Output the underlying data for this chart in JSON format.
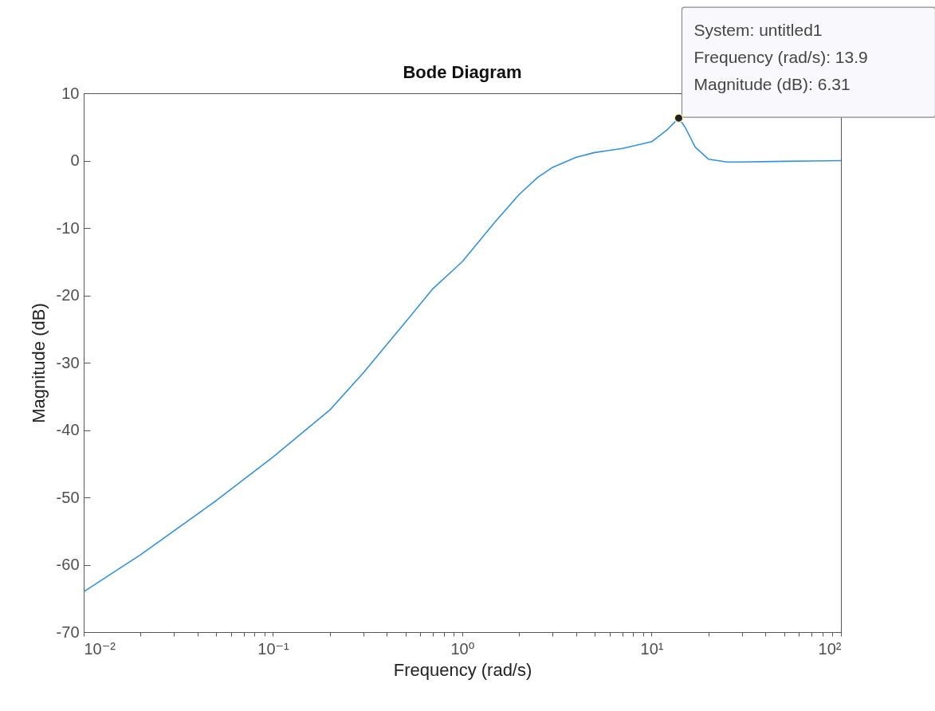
{
  "chart_data": {
    "type": "line",
    "title": "Bode Diagram",
    "xlabel": "Frequency  (rad/s)",
    "ylabel": "Magnitude (dB)",
    "x": [
      0.01,
      0.02,
      0.05,
      0.1,
      0.2,
      0.3,
      0.5,
      0.7,
      1,
      1.5,
      2,
      2.5,
      3,
      4,
      5,
      7,
      10,
      12,
      13.9,
      15,
      17,
      20,
      25,
      30,
      50,
      100
    ],
    "series": [
      {
        "color": "#3391d6",
        "values": [
          -64,
          -58.5,
          -50.5,
          -44,
          -37,
          -31.5,
          -24,
          -19,
          -15,
          -9,
          -5,
          -2.5,
          -1,
          0.5,
          1.2,
          1.8,
          2.8,
          4.5,
          6.31,
          5,
          2,
          0.2,
          -0.2,
          -0.2,
          -0.1,
          0
        ]
      }
    ],
    "log": "x",
    "grid": false,
    "marker": "none",
    "line_style": "solid",
    "xlim": [
      0.01,
      100
    ],
    "ylim": [
      -70,
      10
    ],
    "xticks": [
      {
        "value": 0.01,
        "label": "10⁻²"
      },
      {
        "value": 0.02,
        "label": null
      },
      {
        "value": 0.03,
        "label": null
      },
      {
        "value": 0.04,
        "label": null
      },
      {
        "value": 0.05,
        "label": null
      },
      {
        "value": 0.06,
        "label": null
      },
      {
        "value": 0.07,
        "label": null
      },
      {
        "value": 0.08,
        "label": null
      },
      {
        "value": 0.09,
        "label": null
      },
      {
        "value": 0.1,
        "label": "10⁻¹"
      },
      {
        "value": 0.2,
        "label": null
      },
      {
        "value": 0.3,
        "label": null
      },
      {
        "value": 0.4,
        "label": null
      },
      {
        "value": 0.5,
        "label": null
      },
      {
        "value": 0.6,
        "label": null
      },
      {
        "value": 0.7,
        "label": null
      },
      {
        "value": 0.8,
        "label": null
      },
      {
        "value": 0.9,
        "label": null
      },
      {
        "value": 1,
        "label": "10⁰"
      },
      {
        "value": 2,
        "label": null
      },
      {
        "value": 3,
        "label": null
      },
      {
        "value": 4,
        "label": null
      },
      {
        "value": 5,
        "label": null
      },
      {
        "value": 6,
        "label": null
      },
      {
        "value": 7,
        "label": null
      },
      {
        "value": 8,
        "label": null
      },
      {
        "value": 9,
        "label": null
      },
      {
        "value": 10,
        "label": "10¹"
      },
      {
        "value": 20,
        "label": null
      },
      {
        "value": 30,
        "label": null
      },
      {
        "value": 40,
        "label": null
      },
      {
        "value": 50,
        "label": null
      },
      {
        "value": 60,
        "label": null
      },
      {
        "value": 70,
        "label": null
      },
      {
        "value": 80,
        "label": null
      },
      {
        "value": 90,
        "label": null
      },
      {
        "value": 100,
        "label": "10²"
      }
    ],
    "yticks": [
      -70,
      -60,
      -50,
      -40,
      -30,
      -20,
      -10,
      0,
      10
    ],
    "annotations": [
      {
        "text": "System: untitled1\nFrequency (rad/s): 13.9\nMagnitude (dB): 6.31",
        "x": 13.9,
        "y": 6.31
      }
    ]
  }
}
